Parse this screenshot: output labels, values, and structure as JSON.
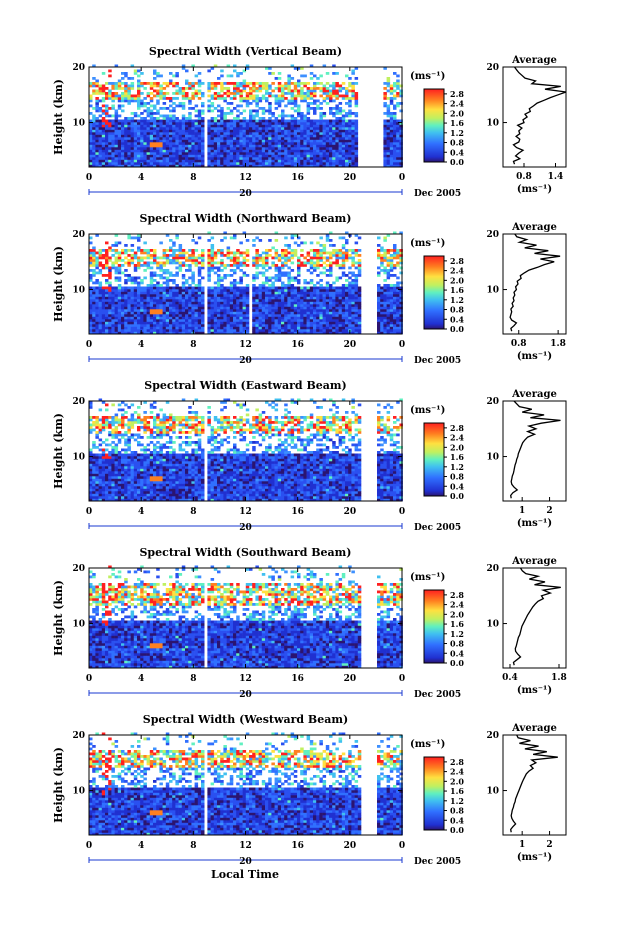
{
  "figure": {
    "xlabel": "Local Time",
    "date_label": "Dec 2005",
    "day_label": "20",
    "ylabel": "Height (km)",
    "colorbar_unit": "(ms⁻¹)",
    "average_title": "Average",
    "average_xlabel": "(ms⁻¹)"
  },
  "chart_data": [
    {
      "type": "heatmap",
      "title": "Spectral Width (Vertical Beam)",
      "x_ticks": [
        "0",
        "4",
        "8",
        "12",
        "16",
        "20",
        "0"
      ],
      "y_ticks": [
        "10",
        "20"
      ],
      "xlim": [
        0,
        24
      ],
      "ylim": [
        2,
        20
      ],
      "colorbar_ticks": [
        "0.0",
        "0.4",
        "0.8",
        "1.2",
        "1.6",
        "2.0",
        "2.4",
        "2.8"
      ],
      "clim": [
        0,
        3.0
      ],
      "data_gaps_hours": [
        [
          8.6,
          8.9
        ],
        [
          20.5,
          22.4
        ]
      ],
      "enhanced_layer_km": [
        14,
        17
      ],
      "average_profile": {
        "title": "Average",
        "xlim": [
          0.4,
          1.6
        ],
        "x_ticks": [
          "0.8",
          "1.4"
        ],
        "x_tick_values": [
          0.8,
          1.4
        ],
        "y_ticks": [
          "10",
          "20"
        ],
        "height_km": [
          2.5,
          3,
          3.5,
          4,
          4.5,
          5,
          5.5,
          6,
          6.5,
          7,
          7.5,
          8,
          8.5,
          9,
          9.5,
          10,
          10.5,
          11,
          11.5,
          12,
          12.5,
          13,
          13.5,
          14,
          14.5,
          15,
          15.5,
          16,
          16.5,
          17,
          17.5,
          18,
          18.5,
          19,
          19.5,
          20
        ],
        "values": [
          0.62,
          0.6,
          0.72,
          0.64,
          0.7,
          0.78,
          0.66,
          0.6,
          0.7,
          0.72,
          0.65,
          0.72,
          0.7,
          0.76,
          0.68,
          0.8,
          0.78,
          0.86,
          0.82,
          0.92,
          0.9,
          0.98,
          1.05,
          1.18,
          1.3,
          1.45,
          1.6,
          1.2,
          1.5,
          0.95,
          1.02,
          0.82,
          0.76,
          0.7,
          0.66,
          0.62
        ]
      }
    },
    {
      "type": "heatmap",
      "title": "Spectral Width (Northward Beam)",
      "x_ticks": [
        "0",
        "4",
        "8",
        "12",
        "16",
        "20",
        "0"
      ],
      "y_ticks": [
        "10",
        "20"
      ],
      "xlim": [
        0,
        24
      ],
      "ylim": [
        2,
        20
      ],
      "colorbar_ticks": [
        "0.0",
        "0.4",
        "0.8",
        "1.2",
        "1.6",
        "2.0",
        "2.4",
        "2.8"
      ],
      "clim": [
        0,
        3.0
      ],
      "data_gaps_hours": [
        [
          8.6,
          8.9
        ],
        [
          20.7,
          22.0
        ],
        [
          12.1,
          12.3
        ]
      ],
      "enhanced_layer_km": [
        14,
        17
      ],
      "average_profile": {
        "title": "Average",
        "xlim": [
          0.4,
          2.0
        ],
        "x_ticks": [
          "0.8",
          "1.8"
        ],
        "x_tick_values": [
          0.8,
          1.8
        ],
        "y_ticks": [
          "10",
          "20"
        ],
        "height_km": [
          2.5,
          3,
          3.5,
          4,
          4.5,
          5,
          5.5,
          6,
          6.5,
          7,
          7.5,
          8,
          8.5,
          9,
          9.5,
          10,
          10.5,
          11,
          11.5,
          12,
          12.5,
          13,
          13.5,
          14,
          14.5,
          15,
          15.5,
          16,
          16.5,
          17,
          17.5,
          18,
          18.5,
          19,
          19.5,
          20
        ],
        "values": [
          0.62,
          0.6,
          0.68,
          0.74,
          0.62,
          0.58,
          0.6,
          0.62,
          0.6,
          0.66,
          0.63,
          0.68,
          0.66,
          0.7,
          0.68,
          0.74,
          0.72,
          0.78,
          0.76,
          0.86,
          0.84,
          0.94,
          1.06,
          1.28,
          1.45,
          1.7,
          1.35,
          1.85,
          1.2,
          1.55,
          0.95,
          1.25,
          0.82,
          1.0,
          0.75,
          0.7
        ]
      }
    },
    {
      "type": "heatmap",
      "title": "Spectral Width (Eastward Beam)",
      "x_ticks": [
        "0",
        "4",
        "8",
        "12",
        "16",
        "20",
        "0"
      ],
      "y_ticks": [
        "10",
        "20"
      ],
      "xlim": [
        0,
        24
      ],
      "ylim": [
        2,
        20
      ],
      "colorbar_ticks": [
        "0.0",
        "0.4",
        "0.8",
        "1.2",
        "1.6",
        "2.0",
        "2.4",
        "2.8"
      ],
      "clim": [
        0,
        3.0
      ],
      "data_gaps_hours": [
        [
          8.6,
          8.9
        ],
        [
          20.7,
          22.0
        ]
      ],
      "enhanced_layer_km": [
        14,
        17
      ],
      "average_profile": {
        "title": "Average",
        "xlim": [
          0.3,
          2.6
        ],
        "x_ticks": [
          "1",
          "2"
        ],
        "x_tick_values": [
          1,
          2
        ],
        "y_ticks": [
          "10",
          "20"
        ],
        "height_km": [
          2.5,
          3,
          3.5,
          4,
          4.5,
          5,
          5.5,
          6,
          6.5,
          7,
          7.5,
          8,
          8.5,
          9,
          9.5,
          10,
          10.5,
          11,
          11.5,
          12,
          12.5,
          13,
          13.5,
          14,
          14.5,
          15,
          15.5,
          16,
          16.5,
          17,
          17.5,
          18,
          18.5,
          19,
          19.5,
          20
        ],
        "values": [
          0.6,
          0.58,
          0.66,
          0.82,
          0.7,
          0.62,
          0.6,
          0.62,
          0.64,
          0.68,
          0.7,
          0.72,
          0.74,
          0.78,
          0.8,
          0.84,
          0.86,
          0.9,
          0.94,
          0.98,
          1.02,
          1.1,
          1.2,
          1.45,
          1.2,
          1.5,
          1.25,
          1.7,
          2.4,
          1.3,
          1.8,
          1.0,
          1.35,
          0.9,
          0.8,
          0.7
        ]
      }
    },
    {
      "type": "heatmap",
      "title": "Spectral Width (Southward Beam)",
      "x_ticks": [
        "0",
        "4",
        "8",
        "12",
        "16",
        "20",
        "0"
      ],
      "y_ticks": [
        "10",
        "20"
      ],
      "xlim": [
        0,
        24
      ],
      "ylim": [
        2,
        20
      ],
      "colorbar_ticks": [
        "0.0",
        "0.4",
        "0.8",
        "1.2",
        "1.6",
        "2.0",
        "2.4",
        "2.8"
      ],
      "clim": [
        0,
        3.0
      ],
      "data_gaps_hours": [
        [
          8.6,
          8.9
        ],
        [
          20.7,
          22.0
        ]
      ],
      "enhanced_layer_km": [
        13,
        17
      ],
      "average_profile": {
        "title": "Average",
        "xlim": [
          0.2,
          2.0
        ],
        "x_ticks": [
          "0.4",
          "1.8"
        ],
        "x_tick_values": [
          0.4,
          1.8
        ],
        "y_ticks": [
          "10",
          "20"
        ],
        "height_km": [
          2.5,
          3,
          3.5,
          4,
          4.5,
          5,
          5.5,
          6,
          6.5,
          7,
          7.5,
          8,
          8.5,
          9,
          9.5,
          10,
          10.5,
          11,
          11.5,
          12,
          12.5,
          13,
          13.5,
          14,
          14.5,
          15,
          15.5,
          16,
          16.5,
          17,
          17.5,
          18,
          18.5,
          19,
          19.5,
          20
        ],
        "values": [
          0.52,
          0.5,
          0.6,
          0.7,
          0.62,
          0.56,
          0.55,
          0.58,
          0.6,
          0.62,
          0.64,
          0.68,
          0.7,
          0.72,
          0.74,
          0.78,
          0.82,
          0.86,
          0.9,
          0.95,
          1.0,
          1.05,
          1.12,
          1.2,
          1.35,
          1.3,
          1.55,
          1.35,
          1.85,
          1.1,
          1.4,
          0.95,
          1.2,
          0.85,
          0.75,
          0.7
        ]
      }
    },
    {
      "type": "heatmap",
      "title": "Spectral Width (Westward Beam)",
      "x_ticks": [
        "0",
        "4",
        "8",
        "12",
        "16",
        "20",
        "0"
      ],
      "y_ticks": [
        "10",
        "20"
      ],
      "xlim": [
        0,
        24
      ],
      "ylim": [
        2,
        20
      ],
      "colorbar_ticks": [
        "0.0",
        "0.4",
        "0.8",
        "1.2",
        "1.6",
        "2.0",
        "2.4",
        "2.8"
      ],
      "clim": [
        0,
        3.0
      ],
      "data_gaps_hours": [
        [
          8.6,
          8.9
        ],
        [
          20.7,
          22.0
        ]
      ],
      "enhanced_layer_km": [
        14,
        17
      ],
      "average_profile": {
        "title": "Average",
        "xlim": [
          0.3,
          2.6
        ],
        "x_ticks": [
          "1",
          "2"
        ],
        "x_tick_values": [
          1,
          2
        ],
        "y_ticks": [
          "10",
          "20"
        ],
        "height_km": [
          2.5,
          3,
          3.5,
          4,
          4.5,
          5,
          5.5,
          6,
          6.5,
          7,
          7.5,
          8,
          8.5,
          9,
          9.5,
          10,
          10.5,
          11,
          11.5,
          12,
          12.5,
          13,
          13.5,
          14,
          14.5,
          15,
          15.5,
          16,
          16.5,
          17,
          17.5,
          18,
          18.5,
          19,
          19.5,
          20
        ],
        "values": [
          0.6,
          0.58,
          0.66,
          0.76,
          0.68,
          0.62,
          0.6,
          0.62,
          0.64,
          0.68,
          0.7,
          0.74,
          0.76,
          0.8,
          0.84,
          0.88,
          0.92,
          0.96,
          1.0,
          1.05,
          1.1,
          1.15,
          1.25,
          1.4,
          1.3,
          1.5,
          1.35,
          2.3,
          1.4,
          1.9,
          1.1,
          1.6,
          0.9,
          1.3,
          0.85,
          0.8
        ]
      }
    }
  ]
}
